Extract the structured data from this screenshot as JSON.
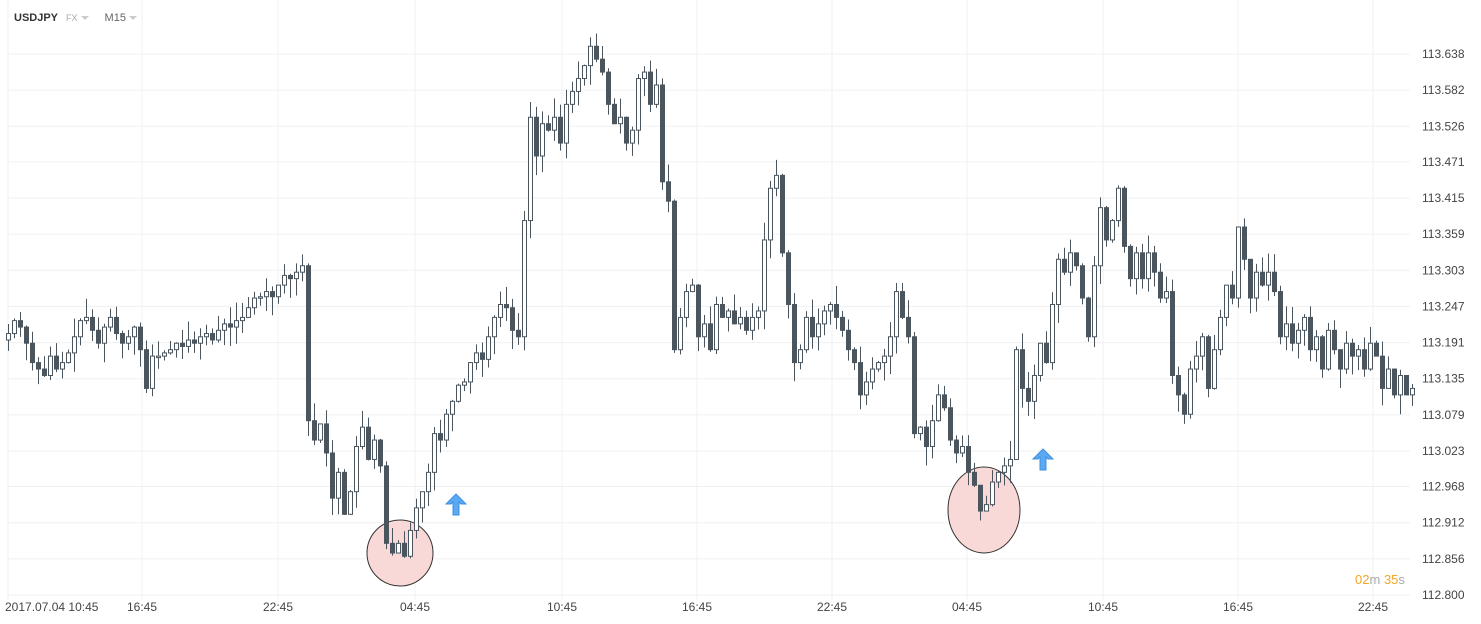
{
  "header": {
    "symbol": "USDJPY",
    "market": "FX",
    "timeframe": "M15"
  },
  "timer": {
    "minutes": "02",
    "m": "m",
    "seconds": "35",
    "s": "s"
  },
  "colors": {
    "candle": "#4a555e",
    "grid": "#f0f0f0",
    "highlight_fill": "#f9d9d7",
    "arrow": "#5aa9f5",
    "timer": "#f5a623"
  },
  "chart_data": {
    "type": "candlestick",
    "y_ticks": [
      "113.638",
      "113.582",
      "113.526",
      "113.471",
      "113.415",
      "113.359",
      "113.303",
      "113.247",
      "113.191",
      "113.135",
      "113.079",
      "113.023",
      "112.968",
      "112.912",
      "112.856",
      "112.800"
    ],
    "ylim": [
      112.8,
      113.638
    ],
    "x_ticks": [
      "2017.07.04  10:45",
      "16:45",
      "22:45",
      "04:45",
      "10:45",
      "16:45",
      "22:45",
      "04:45",
      "10:45",
      "16:45",
      "22:45"
    ],
    "grid": true,
    "first_open": 113.195,
    "closes": [
      113.205,
      113.225,
      113.215,
      113.19,
      113.16,
      113.15,
      113.14,
      113.17,
      113.15,
      113.16,
      113.175,
      113.2,
      113.225,
      113.23,
      113.21,
      113.19,
      113.215,
      113.23,
      113.205,
      113.19,
      113.2,
      113.215,
      113.18,
      113.12,
      113.17,
      113.17,
      113.175,
      113.18,
      113.19,
      113.185,
      113.195,
      113.19,
      113.2,
      113.205,
      113.195,
      113.21,
      113.22,
      113.215,
      113.225,
      113.23,
      113.245,
      113.26,
      113.262,
      113.27,
      113.262,
      113.28,
      113.295,
      113.29,
      113.3,
      113.31,
      113.07,
      113.04,
      113.065,
      113.02,
      112.95,
      112.99,
      112.925,
      112.96,
      113.03,
      113.06,
      113.01,
      113.04,
      113.0,
      112.88,
      112.865,
      112.88,
      112.86,
      112.9,
      112.935,
      112.96,
      112.99,
      113.05,
      113.04,
      113.08,
      113.1,
      113.125,
      113.13,
      113.16,
      113.175,
      113.165,
      113.2,
      113.23,
      113.25,
      113.245,
      113.21,
      113.2,
      113.38,
      113.54,
      113.48,
      113.53,
      113.52,
      113.54,
      113.5,
      113.56,
      113.58,
      113.6,
      113.62,
      113.65,
      113.63,
      113.61,
      113.56,
      113.53,
      113.54,
      113.5,
      113.52,
      113.6,
      113.61,
      113.56,
      113.59,
      113.44,
      113.41,
      113.18,
      113.23,
      113.27,
      113.28,
      113.2,
      113.22,
      113.18,
      113.25,
      113.23,
      113.24,
      113.22,
      113.23,
      113.21,
      113.23,
      113.24,
      113.35,
      113.43,
      113.45,
      113.33,
      113.25,
      113.16,
      113.18,
      113.23,
      113.2,
      113.22,
      113.24,
      113.25,
      113.23,
      113.21,
      113.18,
      113.16,
      113.11,
      113.13,
      113.15,
      113.16,
      113.17,
      113.2,
      113.27,
      113.23,
      113.2,
      113.05,
      113.06,
      113.03,
      113.07,
      113.11,
      113.09,
      113.04,
      113.02,
      113.03,
      112.99,
      112.97,
      112.93,
      112.94,
      112.975,
      112.99,
      113.0,
      113.01,
      113.18,
      113.12,
      113.1,
      113.14,
      113.19,
      113.16,
      113.25,
      113.32,
      113.3,
      113.33,
      113.31,
      113.26,
      113.2,
      113.31,
      113.4,
      113.35,
      113.38,
      113.43,
      113.34,
      113.29,
      113.33,
      113.29,
      113.33,
      113.3,
      113.26,
      113.27,
      113.14,
      113.11,
      113.08,
      113.15,
      113.17,
      113.2,
      113.12,
      113.18,
      113.23,
      113.28,
      113.26,
      113.37,
      113.32,
      113.26,
      113.3,
      113.28,
      113.3,
      113.27,
      113.2,
      113.22,
      113.19,
      113.21,
      113.23,
      113.18,
      113.2,
      113.15,
      113.21,
      113.18,
      113.15,
      113.19,
      113.17,
      113.18,
      113.15,
      113.19,
      113.17,
      113.12,
      113.15,
      113.11,
      113.14,
      113.11,
      113.12
    ],
    "annotations": [
      {
        "type": "circle",
        "time_label": "01:45",
        "price": 112.88
      },
      {
        "type": "arrow-up",
        "time_label": "05:45",
        "price": 112.95
      },
      {
        "type": "circle",
        "time_label": "04:45",
        "price": 112.94
      },
      {
        "type": "arrow-up",
        "time_label": "07:45",
        "price": 113.015
      }
    ]
  }
}
